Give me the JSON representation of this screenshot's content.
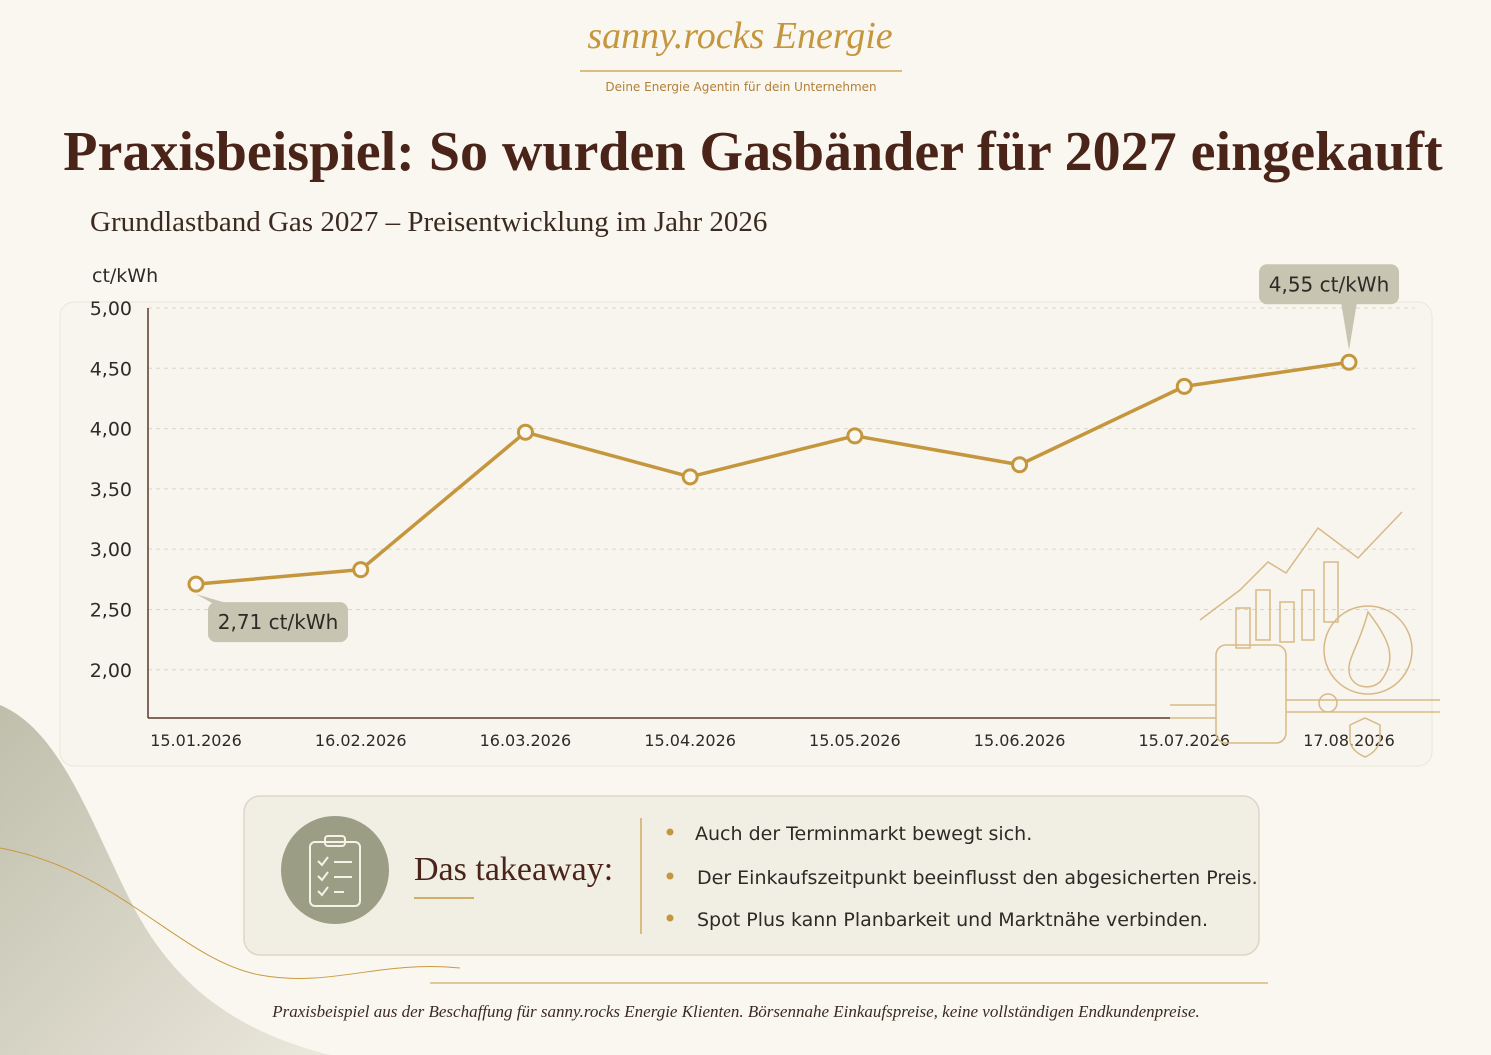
{
  "brand": "sanny.rocks Energie",
  "tagline": "Deine Energie Agentin für dein Unternehmen",
  "chart_data": {
    "type": "line",
    "title": "Praxisbeispiel: So wurden Gasbänder für 2027 eingekauft",
    "subtitle": "Grundlastband Gas 2027 – Preisentwicklung im Jahr 2026",
    "y_label": "ct/kWh",
    "categories": [
      "15.01.2026",
      "16.02.2026",
      "16.03.2026",
      "15.04.2026",
      "15.05.2026",
      "15.06.2026",
      "15.07.2026",
      "17.08.2026"
    ],
    "values": [
      2.71,
      2.83,
      3.97,
      3.6,
      3.94,
      3.7,
      4.35,
      4.55
    ],
    "value_labels": [
      "2,71 ct/kWh",
      null,
      null,
      null,
      null,
      null,
      null,
      "4,55 ct/kWh"
    ],
    "color": "#c4963d",
    "ylim": [
      1.6,
      5
    ],
    "yticks": [
      {
        "value": 2,
        "label": "2,00"
      },
      {
        "value": 2.5,
        "label": "2,50"
      },
      {
        "value": 3,
        "label": "3,00"
      },
      {
        "value": 3.5,
        "label": "3,50"
      },
      {
        "value": 4,
        "label": "4,00"
      },
      {
        "value": 4.5,
        "label": "4,50"
      },
      {
        "value": 5,
        "label": "5,00"
      }
    ],
    "grid": true
  },
  "takeaway": {
    "heading": "Das takeaway:",
    "bullets": [
      "Auch der Terminmarkt bewegt sich.",
      "Der Einkaufszeitpunkt beeinflusst den abgesicherten Preis.",
      "Spot Plus kann Planbarkeit und Marktnähe verbinden."
    ]
  },
  "footnote": "Praxisbeispiel aus der Beschaffung für sanny.rocks Energie Klienten. Börsennahe Einkaufspreise, keine vollständigen Endkundenpreise."
}
